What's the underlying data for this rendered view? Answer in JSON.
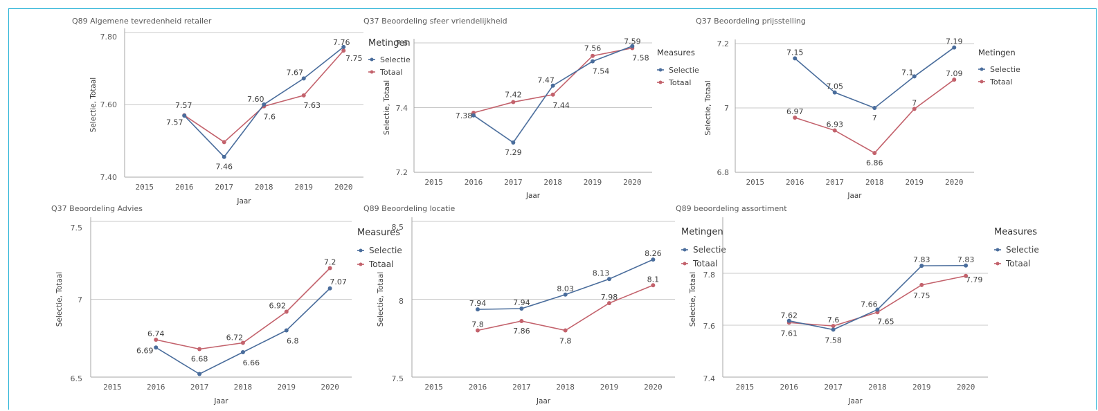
{
  "colors": {
    "selectie": "#4a6d9c",
    "totaal": "#c3626c",
    "grid": "#c8c8c8",
    "axis": "#a6a6a6",
    "frame": "#2fb5d8"
  },
  "chart_data": [
    {
      "type": "line",
      "title": "Q89 Algemene tevredenheid retailer",
      "xlabel": "Jaar",
      "ylabel": "Selectie, Totaal",
      "x": [
        "2015",
        "2016",
        "2017",
        "2018",
        "2019",
        "2020"
      ],
      "yticks": [
        "7.40",
        "7.60",
        "7.80"
      ],
      "ylim": [
        7.4,
        7.8
      ],
      "legend_title": "Metingen",
      "series": [
        {
          "name": "Selectie",
          "values": [
            null,
            7.57,
            7.456,
            7.601,
            7.673,
            7.76
          ],
          "labels": [
            "",
            "",
            "7.46",
            "7.60",
            "7.67",
            "7.76"
          ]
        },
        {
          "name": "Totaal",
          "values": [
            null,
            7.571,
            7.497,
            7.596,
            7.626,
            7.75
          ],
          "labels": [
            "",
            "7.57",
            "",
            "7.6",
            "7.63",
            "7.75"
          ]
        }
      ],
      "shared_label": {
        "index": 1,
        "text": "7.57"
      }
    },
    {
      "type": "line",
      "title": "Q37 Beoordeling sfeer vriendelijkheid",
      "xlabel": "Jaar",
      "ylabel": "Selectie, Totaal",
      "x": [
        "2015",
        "2016",
        "2017",
        "2018",
        "2019",
        "2020"
      ],
      "yticks": [
        "7.2",
        "7.4",
        "7.6"
      ],
      "ylim": [
        7.2,
        7.6
      ],
      "legend_title": "Measures",
      "series": [
        {
          "name": "Selectie",
          "values": [
            null,
            7.376,
            7.292,
            7.468,
            7.543,
            7.59
          ],
          "labels": [
            "",
            "",
            "7.29",
            "7.47",
            "7.54",
            "7.59"
          ]
        },
        {
          "name": "Totaal",
          "values": [
            null,
            7.384,
            7.417,
            7.44,
            7.56,
            7.584
          ],
          "labels": [
            "",
            "7.38",
            "7.42",
            "7.44",
            "7.56",
            "7.58"
          ]
        }
      ]
    },
    {
      "type": "line",
      "title": "Q37 Beoordeling prijsstelling",
      "xlabel": "Jaar",
      "ylabel": "Selectie, Totaal",
      "x": [
        "2015",
        "2016",
        "2017",
        "2018",
        "2019",
        "2020"
      ],
      "yticks": [
        "6.8",
        "7",
        "7.2"
      ],
      "ylim": [
        6.8,
        7.2
      ],
      "legend_title": "Metingen",
      "series": [
        {
          "name": "Selectie",
          "values": [
            null,
            7.154,
            7.048,
            7.0,
            7.098,
            7.188
          ],
          "labels": [
            "",
            "7.15",
            "7.05",
            "7",
            "7.1",
            "7.19"
          ]
        },
        {
          "name": "Totaal",
          "values": [
            null,
            6.97,
            6.93,
            6.86,
            6.997,
            7.088
          ],
          "labels": [
            "",
            "6.97",
            "6.93",
            "6.86",
            "7",
            "7.09"
          ]
        }
      ]
    },
    {
      "type": "line",
      "title": "Q37 Beoordeling Advies",
      "xlabel": "Jaar",
      "ylabel": "Selectie, Totaal",
      "x": [
        "2015",
        "2016",
        "2017",
        "2018",
        "2019",
        "2020"
      ],
      "yticks": [
        "6.5",
        "7",
        "7.5"
      ],
      "ylim": [
        6.5,
        7.5
      ],
      "legend_title": "Measures",
      "series": [
        {
          "name": "Selectie",
          "values": [
            null,
            6.69,
            6.52,
            6.66,
            6.8,
            7.07
          ],
          "labels": [
            "",
            "6.69",
            "",
            "6.66",
            "6.8",
            "7.07"
          ]
        },
        {
          "name": "Totaal",
          "values": [
            null,
            6.74,
            6.68,
            6.72,
            6.92,
            7.2
          ],
          "labels": [
            "",
            "6.74",
            "6.68",
            "6.72",
            "6.92",
            "7.2"
          ]
        }
      ]
    },
    {
      "type": "line",
      "title": "Q89 Beoordeling locatie",
      "xlabel": "Jaar",
      "ylabel": "Selectie, Totaal",
      "x": [
        "2015",
        "2016",
        "2017",
        "2018",
        "2019",
        "2020"
      ],
      "yticks": [
        "7.5",
        "8",
        "8.5"
      ],
      "ylim": [
        7.5,
        8.5
      ],
      "legend_title": "Metingen",
      "series": [
        {
          "name": "Selectie",
          "values": [
            null,
            7.935,
            7.94,
            8.03,
            8.13,
            8.255
          ],
          "labels": [
            "",
            "7.94",
            "7.94",
            "8.03",
            "8.13",
            "8.26"
          ]
        },
        {
          "name": "Totaal",
          "values": [
            null,
            7.8,
            7.86,
            7.8,
            7.975,
            8.09
          ],
          "labels": [
            "",
            "7.8",
            "7.86",
            "7.8",
            "7.98",
            "8.1"
          ]
        }
      ]
    },
    {
      "type": "line",
      "title": "Q89 beoordeling assortiment",
      "xlabel": "Jaar",
      "ylabel": "Selectie, Totaal",
      "x": [
        "2015",
        "2016",
        "2017",
        "2018",
        "2019",
        "2020"
      ],
      "yticks": [
        "7.4",
        "7.6",
        "7.8"
      ],
      "ylim": [
        7.4,
        8.0
      ],
      "legend_title": "Measures",
      "series": [
        {
          "name": "Selectie",
          "values": [
            null,
            7.617,
            7.583,
            7.66,
            7.829,
            7.83
          ],
          "labels": [
            "",
            "7.62",
            "7.58",
            "7.66",
            "7.83",
            "7.83"
          ]
        },
        {
          "name": "Totaal",
          "values": [
            null,
            7.61,
            7.597,
            7.65,
            7.755,
            7.79
          ],
          "labels": [
            "",
            "7.61",
            "7.6",
            "7.65",
            "7.75",
            "7.79"
          ]
        }
      ]
    }
  ]
}
